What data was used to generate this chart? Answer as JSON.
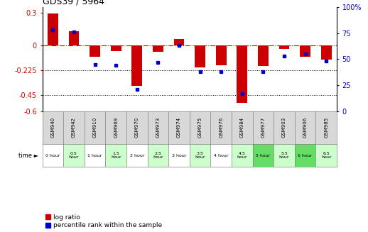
{
  "title": "GDS39 / 5964",
  "samples": [
    "GSM940",
    "GSM942",
    "GSM910",
    "GSM969",
    "GSM970",
    "GSM973",
    "GSM974",
    "GSM975",
    "GSM976",
    "GSM984",
    "GSM977",
    "GSM903",
    "GSM906",
    "GSM985"
  ],
  "times": [
    "0 hour",
    "0.5\nhour",
    "1 hour",
    "1.5\nhour",
    "2 hour",
    "2.5\nhour",
    "3 hour",
    "3.5\nhour",
    "4 hour",
    "4.5\nhour",
    "5 hour",
    "5.5\nhour",
    "6 hour",
    "6.5\nhour"
  ],
  "time_colors": [
    "white",
    "#ccffcc",
    "white",
    "#ccffcc",
    "white",
    "#ccffcc",
    "white",
    "#ccffcc",
    "white",
    "#ccffcc",
    "#66dd66",
    "#ccffcc",
    "#66dd66",
    "#ccffcc"
  ],
  "log_ratio": [
    0.29,
    0.13,
    -0.1,
    -0.05,
    -0.37,
    -0.06,
    0.06,
    -0.2,
    -0.18,
    -0.52,
    -0.19,
    -0.03,
    -0.1,
    -0.13
  ],
  "percentile": [
    78,
    76,
    45,
    44,
    21,
    47,
    63,
    38,
    38,
    17,
    38,
    53,
    55,
    48
  ],
  "red_color": "#cc0000",
  "blue_color": "#0000cc",
  "ylim_left": [
    -0.6,
    0.35
  ],
  "ylim_right": [
    0,
    100
  ],
  "yticks_left": [
    0.3,
    0,
    -0.225,
    -0.45,
    -0.6
  ],
  "yticks_right": [
    100,
    75,
    50,
    25,
    0
  ],
  "sample_bg": "#d8d8d8",
  "bar_width": 0.5
}
